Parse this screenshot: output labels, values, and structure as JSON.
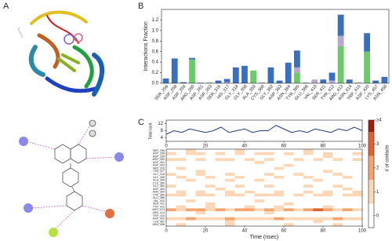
{
  "panels": {
    "a": "A",
    "b": "B",
    "c": "C"
  },
  "chart_data": [
    {
      "type": "bar",
      "stacked": true,
      "ylabel": "Interactions Fraction",
      "categories": [
        "SER_256",
        "ASP_258",
        "ASP_259",
        "ARG_260",
        "ASP_261",
        "ASP_263",
        "SER_316",
        "HIS_317",
        "GLY_318",
        "GLY_358",
        "ALA_359",
        "CYS_360",
        "GLY_362",
        "ASP_363",
        "ASN_364",
        "TYR_365",
        "GLU_366",
        "VAL_410",
        "SER_411",
        "TYR_412",
        "ARG_413",
        "ASN_414",
        "TRP_415",
        "ASP_420",
        "LYS_457",
        "ASN_458"
      ],
      "series": [
        {
          "color": "#6cc96c",
          "values": [
            0,
            0,
            0,
            0.45,
            0,
            0,
            0,
            0,
            0,
            0,
            0.24,
            0,
            0,
            0,
            0,
            0.2,
            0,
            0,
            0,
            0,
            0.7,
            0,
            0,
            0.6,
            0,
            0
          ]
        },
        {
          "color": "#b9a6d6",
          "values": [
            0,
            0,
            0,
            0,
            0,
            0,
            0,
            0.02,
            0,
            0,
            0,
            0,
            0,
            0,
            0,
            0.1,
            0,
            0.07,
            0,
            0.05,
            0.2,
            0,
            0,
            0,
            0,
            0
          ]
        },
        {
          "color": "#3a6fc0",
          "values": [
            0.09,
            0.47,
            0.02,
            0.03,
            0.01,
            0.01,
            0.05,
            0.06,
            0.3,
            0.33,
            0,
            0.01,
            0.3,
            0.05,
            0.39,
            0.32,
            0.01,
            0,
            0.07,
            0.15,
            0.4,
            0.07,
            0.01,
            0.35,
            0.05,
            0.12
          ]
        }
      ],
      "ylim": [
        0,
        1.4
      ],
      "yticks": [
        {
          "value": 0,
          "label": "0.0"
        },
        0.2,
        0.4,
        0.6,
        0.8,
        {
          "value": 1,
          "label": "1.0"
        },
        1.2
      ]
    },
    {
      "type": "line",
      "ylabel": "Total cont.",
      "color": "#1f3f7a",
      "x": [
        0,
        4,
        8,
        12,
        16,
        20,
        24,
        28,
        32,
        36,
        40,
        44,
        48,
        52,
        56,
        60,
        64,
        68,
        72,
        76,
        80,
        84,
        88,
        92,
        96,
        100
      ],
      "values": [
        6,
        8,
        7,
        9,
        8,
        7,
        8,
        10,
        7,
        8,
        9,
        7,
        8,
        8,
        11,
        9,
        7,
        8,
        7,
        9,
        8,
        7,
        9,
        8,
        10,
        8
      ],
      "xlim": [
        0,
        100
      ],
      "xticks": [
        0,
        20,
        40,
        60,
        80,
        100
      ],
      "ylim": [
        2,
        14
      ],
      "yticks": [
        4,
        8,
        12
      ]
    },
    {
      "type": "heatmap",
      "xlabel": "Time (nsec)",
      "xlim": [
        0,
        100
      ],
      "xticks": [
        0,
        20,
        40,
        60,
        80,
        100
      ],
      "categories": [
        "SER_256",
        "ASP_258",
        "ASP_259",
        "ARG_260",
        "ASP_261",
        "ASP_263",
        "SER_316",
        "HIS_317",
        "GLY_318",
        "GLY_358",
        "ALA_359",
        "CYS_360",
        "GLY_362",
        "ASP_363",
        "ASN_364",
        "TYR_365",
        "GLU_366",
        "VAL_410",
        "SER_411",
        "TYR_412",
        "ARG_413",
        "ASN_414",
        "TRP_415",
        "ASP_420",
        "LYS_457",
        "ASN_458"
      ],
      "values": [
        [
          0,
          0,
          1,
          0,
          0,
          0,
          0,
          1,
          0,
          0,
          0,
          0,
          0,
          0,
          1,
          0,
          0,
          0,
          0,
          0
        ],
        [
          1,
          0,
          1,
          1,
          0,
          1,
          0,
          1,
          0,
          1,
          1,
          0,
          1,
          0,
          1,
          0,
          1,
          0,
          0,
          1
        ],
        [
          0,
          0,
          0,
          0,
          0,
          0,
          0,
          0,
          0,
          0,
          0,
          0,
          0,
          0,
          0,
          0,
          1,
          0,
          0,
          0
        ],
        [
          1,
          1,
          0,
          1,
          0,
          1,
          1,
          0,
          1,
          0,
          1,
          0,
          0,
          1,
          0,
          1,
          0,
          1,
          0,
          1
        ],
        [
          0,
          0,
          0,
          0,
          0,
          0,
          0,
          0,
          0,
          1,
          0,
          0,
          0,
          0,
          0,
          0,
          0,
          0,
          0,
          0
        ],
        [
          0,
          0,
          0,
          0,
          0,
          0,
          0,
          0,
          0,
          0,
          0,
          0,
          1,
          0,
          0,
          0,
          0,
          0,
          0,
          0
        ],
        [
          0,
          1,
          0,
          0,
          0,
          0,
          0,
          0,
          0,
          0,
          0,
          1,
          0,
          0,
          0,
          0,
          0,
          0,
          0,
          0
        ],
        [
          0,
          0,
          0,
          1,
          0,
          0,
          0,
          0,
          0,
          0,
          0,
          0,
          0,
          0,
          0,
          0,
          1,
          0,
          0,
          0
        ],
        [
          1,
          0,
          0,
          1,
          0,
          0,
          1,
          0,
          0,
          0,
          1,
          0,
          0,
          1,
          0,
          0,
          0,
          1,
          0,
          0
        ],
        [
          0,
          1,
          0,
          0,
          1,
          0,
          0,
          1,
          0,
          0,
          0,
          1,
          0,
          0,
          1,
          0,
          0,
          0,
          1,
          0
        ],
        [
          0,
          0,
          1,
          0,
          0,
          0,
          1,
          0,
          0,
          1,
          0,
          0,
          0,
          0,
          0,
          1,
          0,
          0,
          0,
          0
        ],
        [
          0,
          0,
          0,
          0,
          0,
          0,
          0,
          0,
          0,
          0,
          0,
          0,
          0,
          0,
          0,
          0,
          0,
          0,
          0,
          0
        ],
        [
          1,
          0,
          0,
          0,
          1,
          0,
          0,
          1,
          0,
          0,
          1,
          0,
          0,
          0,
          1,
          0,
          0,
          1,
          0,
          0
        ],
        [
          0,
          0,
          0,
          0,
          0,
          1,
          0,
          0,
          0,
          0,
          0,
          0,
          0,
          0,
          0,
          0,
          0,
          0,
          1,
          0
        ],
        [
          0,
          1,
          0,
          1,
          0,
          0,
          1,
          0,
          1,
          0,
          0,
          1,
          0,
          0,
          1,
          0,
          1,
          0,
          0,
          1
        ],
        [
          1,
          1,
          0,
          1,
          1,
          0,
          1,
          1,
          0,
          1,
          1,
          1,
          0,
          1,
          0,
          1,
          1,
          0,
          1,
          1
        ],
        [
          0,
          0,
          0,
          0,
          0,
          0,
          0,
          0,
          0,
          0,
          0,
          0,
          0,
          0,
          0,
          0,
          0,
          0,
          0,
          0
        ],
        [
          0,
          0,
          1,
          0,
          0,
          0,
          0,
          0,
          0,
          1,
          0,
          0,
          0,
          0,
          0,
          0,
          0,
          0,
          0,
          0
        ],
        [
          0,
          0,
          0,
          0,
          1,
          0,
          0,
          0,
          0,
          0,
          0,
          0,
          1,
          0,
          0,
          0,
          0,
          0,
          0,
          0
        ],
        [
          0,
          1,
          0,
          0,
          1,
          0,
          0,
          0,
          1,
          0,
          0,
          1,
          0,
          0,
          0,
          0,
          1,
          0,
          0,
          0
        ],
        [
          2,
          1,
          2,
          2,
          1,
          2,
          1,
          2,
          2,
          1,
          2,
          1,
          2,
          1,
          2,
          3,
          2,
          1,
          2,
          1
        ],
        [
          0,
          0,
          0,
          1,
          0,
          0,
          0,
          0,
          0,
          0,
          1,
          0,
          0,
          0,
          0,
          0,
          0,
          0,
          0,
          0
        ],
        [
          0,
          0,
          0,
          0,
          0,
          0,
          0,
          0,
          0,
          0,
          0,
          0,
          0,
          0,
          0,
          0,
          0,
          0,
          0,
          0
        ],
        [
          1,
          1,
          2,
          1,
          1,
          1,
          2,
          1,
          1,
          1,
          1,
          2,
          1,
          1,
          1,
          1,
          1,
          2,
          1,
          1
        ],
        [
          0,
          0,
          0,
          0,
          0,
          0,
          1,
          0,
          0,
          0,
          0,
          0,
          0,
          0,
          0,
          1,
          0,
          0,
          0,
          0
        ],
        [
          0,
          1,
          0,
          0,
          0,
          0,
          1,
          0,
          0,
          0,
          0,
          0,
          1,
          0,
          0,
          0,
          0,
          1,
          0,
          0
        ]
      ],
      "clabel": "# of contacts",
      "clim": [
        0,
        4.5
      ],
      "cticks": [
        0,
        1,
        2,
        3,
        {
          "value": 4,
          "label": "≥4"
        }
      ],
      "colors": [
        "#ffffff",
        "#fcd7b6",
        "#f4a46e",
        "#e0622f",
        "#a31c10"
      ]
    }
  ]
}
